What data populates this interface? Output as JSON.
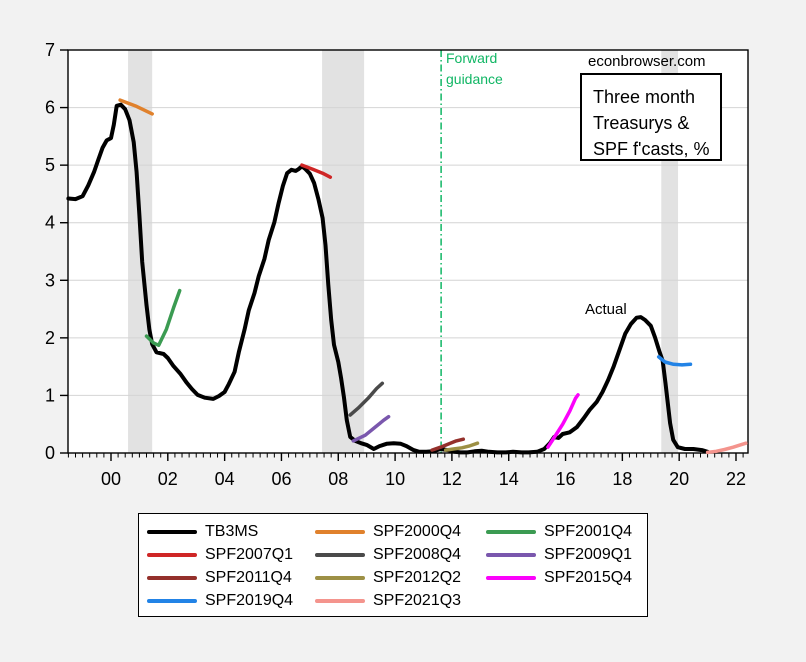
{
  "watermark": "econbrowser.com",
  "annotations": {
    "forward_guidance": {
      "line1": "Forward",
      "line2": "guidance",
      "year": 2011.62,
      "color": "#10b664"
    },
    "actual_label": "Actual",
    "note_box": {
      "lines": [
        "Three month",
        "Treasurys &",
        "SPF f'casts, %"
      ]
    }
  },
  "chart_data": {
    "type": "line",
    "title": "Three month Treasurys & SPF f'casts, %",
    "xlabel": "",
    "ylabel": "",
    "grid": "horizontal",
    "legend_position": "bottom",
    "colors": {
      "figure_bg": "#f2f2f2",
      "plot_bg": "#ffffff",
      "recession_band": "#e2e2e2",
      "gridline": "#d4d4d4",
      "frame": "#000000"
    },
    "x_axis": {
      "range": [
        1998.49,
        2022.42
      ],
      "major_ticks": [
        2000,
        2002,
        2004,
        2006,
        2008,
        2010,
        2012,
        2014,
        2016,
        2018,
        2020,
        2022
      ],
      "tick_labels": [
        "00",
        "02",
        "04",
        "06",
        "08",
        "10",
        "12",
        "14",
        "16",
        "18",
        "20",
        "22"
      ],
      "minor_tick_interval": 0.25
    },
    "y_axis": {
      "range": [
        0,
        7
      ],
      "ticks": [
        0,
        1,
        2,
        3,
        4,
        5,
        6,
        7
      ],
      "tick_labels": [
        "0",
        "1",
        "2",
        "3",
        "4",
        "5",
        "6",
        "7"
      ]
    },
    "recession_bands": [
      [
        2000.6,
        2001.45
      ],
      [
        2007.43,
        2008.91
      ],
      [
        2019.37,
        2019.96
      ]
    ],
    "series": [
      {
        "name": "TB3MS",
        "color": "#000000",
        "width": 4,
        "points": [
          [
            1998.5,
            4.42
          ],
          [
            1998.75,
            4.41
          ],
          [
            1999.0,
            4.46
          ],
          [
            1999.2,
            4.65
          ],
          [
            1999.4,
            4.88
          ],
          [
            1999.55,
            5.09
          ],
          [
            1999.7,
            5.3
          ],
          [
            1999.85,
            5.43
          ],
          [
            2000.0,
            5.47
          ],
          [
            2000.1,
            5.7
          ],
          [
            2000.2,
            6.03
          ],
          [
            2000.35,
            6.05
          ],
          [
            2000.5,
            5.97
          ],
          [
            2000.65,
            5.78
          ],
          [
            2000.8,
            5.4
          ],
          [
            2000.9,
            4.88
          ],
          [
            2001.0,
            4.13
          ],
          [
            2001.1,
            3.32
          ],
          [
            2001.25,
            2.57
          ],
          [
            2001.35,
            2.14
          ],
          [
            2001.45,
            1.89
          ],
          [
            2001.6,
            1.75
          ],
          [
            2001.85,
            1.72
          ],
          [
            2002.0,
            1.65
          ],
          [
            2002.2,
            1.51
          ],
          [
            2002.45,
            1.37
          ],
          [
            2002.65,
            1.23
          ],
          [
            2002.85,
            1.11
          ],
          [
            2003.05,
            1.01
          ],
          [
            2003.3,
            0.96
          ],
          [
            2003.6,
            0.94
          ],
          [
            2003.8,
            0.99
          ],
          [
            2004.0,
            1.06
          ],
          [
            2004.15,
            1.2
          ],
          [
            2004.35,
            1.41
          ],
          [
            2004.5,
            1.75
          ],
          [
            2004.7,
            2.14
          ],
          [
            2004.85,
            2.48
          ],
          [
            2005.05,
            2.78
          ],
          [
            2005.2,
            3.07
          ],
          [
            2005.4,
            3.37
          ],
          [
            2005.55,
            3.7
          ],
          [
            2005.75,
            4.01
          ],
          [
            2005.9,
            4.34
          ],
          [
            2006.05,
            4.64
          ],
          [
            2006.2,
            4.86
          ],
          [
            2006.35,
            4.92
          ],
          [
            2006.5,
            4.9
          ],
          [
            2006.6,
            4.93
          ],
          [
            2006.72,
            4.98
          ],
          [
            2006.85,
            4.93
          ],
          [
            2007.0,
            4.85
          ],
          [
            2007.15,
            4.69
          ],
          [
            2007.3,
            4.41
          ],
          [
            2007.45,
            4.08
          ],
          [
            2007.55,
            3.61
          ],
          [
            2007.65,
            2.92
          ],
          [
            2007.75,
            2.31
          ],
          [
            2007.85,
            1.88
          ],
          [
            2008.0,
            1.58
          ],
          [
            2008.1,
            1.3
          ],
          [
            2008.2,
            0.96
          ],
          [
            2008.3,
            0.57
          ],
          [
            2008.42,
            0.28
          ],
          [
            2008.6,
            0.21
          ],
          [
            2008.8,
            0.17
          ],
          [
            2009.0,
            0.14
          ],
          [
            2009.25,
            0.07
          ],
          [
            2009.45,
            0.12
          ],
          [
            2009.7,
            0.16
          ],
          [
            2009.95,
            0.17
          ],
          [
            2010.2,
            0.16
          ],
          [
            2010.4,
            0.12
          ],
          [
            2010.65,
            0.05
          ],
          [
            2010.85,
            0.02
          ],
          [
            2011.1,
            0.02
          ],
          [
            2011.35,
            0.03
          ],
          [
            2011.6,
            0.07
          ],
          [
            2011.85,
            0.05
          ],
          [
            2012.1,
            0.02
          ],
          [
            2012.3,
            0.01
          ],
          [
            2012.55,
            0.01
          ],
          [
            2012.8,
            0.03
          ],
          [
            2013.05,
            0.04
          ],
          [
            2013.3,
            0.02
          ],
          [
            2013.6,
            0.01
          ],
          [
            2013.9,
            0.01
          ],
          [
            2014.15,
            0.02
          ],
          [
            2014.45,
            0.01
          ],
          [
            2014.7,
            0.01
          ],
          [
            2015.0,
            0.02
          ],
          [
            2015.25,
            0.07
          ],
          [
            2015.45,
            0.17
          ],
          [
            2015.6,
            0.28
          ],
          [
            2015.75,
            0.26
          ],
          [
            2015.9,
            0.33
          ],
          [
            2016.15,
            0.36
          ],
          [
            2016.4,
            0.45
          ],
          [
            2016.65,
            0.61
          ],
          [
            2016.85,
            0.75
          ],
          [
            2017.1,
            0.89
          ],
          [
            2017.3,
            1.06
          ],
          [
            2017.5,
            1.27
          ],
          [
            2017.7,
            1.51
          ],
          [
            2017.9,
            1.79
          ],
          [
            2018.1,
            2.07
          ],
          [
            2018.3,
            2.24
          ],
          [
            2018.5,
            2.35
          ],
          [
            2018.65,
            2.36
          ],
          [
            2018.8,
            2.31
          ],
          [
            2019.0,
            2.21
          ],
          [
            2019.15,
            2.01
          ],
          [
            2019.3,
            1.77
          ],
          [
            2019.42,
            1.6
          ],
          [
            2019.52,
            1.21
          ],
          [
            2019.68,
            0.52
          ],
          [
            2019.79,
            0.23
          ],
          [
            2019.95,
            0.1
          ],
          [
            2020.2,
            0.07
          ],
          [
            2020.5,
            0.07
          ],
          [
            2020.8,
            0.05
          ],
          [
            2021.0,
            0.02
          ]
        ]
      },
      {
        "name": "SPF2000Q4",
        "color": "#e0812c",
        "width": 3.5,
        "points": [
          [
            2000.32,
            6.13
          ],
          [
            2000.9,
            6.02
          ],
          [
            2001.45,
            5.89
          ]
        ]
      },
      {
        "name": "SPF2001Q4",
        "color": "#3b9b52",
        "width": 3.5,
        "points": [
          [
            2001.25,
            2.03
          ],
          [
            2001.5,
            1.91
          ],
          [
            2001.68,
            1.87
          ],
          [
            2001.95,
            2.15
          ],
          [
            2002.2,
            2.52
          ],
          [
            2002.42,
            2.82
          ]
        ]
      },
      {
        "name": "SPF2007Q1",
        "color": "#cf2626",
        "width": 3.5,
        "points": [
          [
            2006.72,
            5.0
          ],
          [
            2007.1,
            4.93
          ],
          [
            2007.45,
            4.86
          ],
          [
            2007.72,
            4.79
          ]
        ]
      },
      {
        "name": "SPF2008Q4",
        "color": "#4a4a4a",
        "width": 3.5,
        "points": [
          [
            2008.42,
            0.66
          ],
          [
            2008.7,
            0.78
          ],
          [
            2009.05,
            0.95
          ],
          [
            2009.35,
            1.12
          ],
          [
            2009.55,
            1.21
          ]
        ]
      },
      {
        "name": "SPF2009Q1",
        "color": "#7a57ad",
        "width": 3.5,
        "points": [
          [
            2008.53,
            0.21
          ],
          [
            2008.95,
            0.31
          ],
          [
            2009.3,
            0.45
          ],
          [
            2009.6,
            0.57
          ],
          [
            2009.77,
            0.63
          ]
        ]
      },
      {
        "name": "SPF2011Q4",
        "color": "#94302b",
        "width": 3.5,
        "points": [
          [
            2011.3,
            0.05
          ],
          [
            2011.6,
            0.1
          ],
          [
            2011.9,
            0.16
          ],
          [
            2012.15,
            0.21
          ],
          [
            2012.4,
            0.24
          ]
        ]
      },
      {
        "name": "SPF2012Q2",
        "color": "#9d9045",
        "width": 3.5,
        "points": [
          [
            2011.78,
            0.05
          ],
          [
            2012.05,
            0.07
          ],
          [
            2012.35,
            0.09
          ],
          [
            2012.6,
            0.12
          ],
          [
            2012.9,
            0.17
          ]
        ]
      },
      {
        "name": "SPF2015Q4",
        "color": "#fb02fb",
        "width": 3.5,
        "points": [
          [
            2015.38,
            0.1
          ],
          [
            2015.6,
            0.27
          ],
          [
            2015.9,
            0.5
          ],
          [
            2016.15,
            0.73
          ],
          [
            2016.35,
            0.95
          ],
          [
            2016.44,
            1.01
          ]
        ]
      },
      {
        "name": "SPF2019Q4",
        "color": "#2283e6",
        "width": 3.5,
        "points": [
          [
            2019.28,
            1.67
          ],
          [
            2019.5,
            1.58
          ],
          [
            2019.8,
            1.54
          ],
          [
            2020.1,
            1.53
          ],
          [
            2020.4,
            1.54
          ]
        ]
      },
      {
        "name": "SPF2021Q3",
        "color": "#f4948d",
        "width": 3.5,
        "points": [
          [
            2021.0,
            0.01
          ],
          [
            2021.3,
            0.03
          ],
          [
            2021.6,
            0.06
          ],
          [
            2021.9,
            0.1
          ],
          [
            2022.15,
            0.14
          ],
          [
            2022.35,
            0.17
          ]
        ]
      }
    ]
  }
}
